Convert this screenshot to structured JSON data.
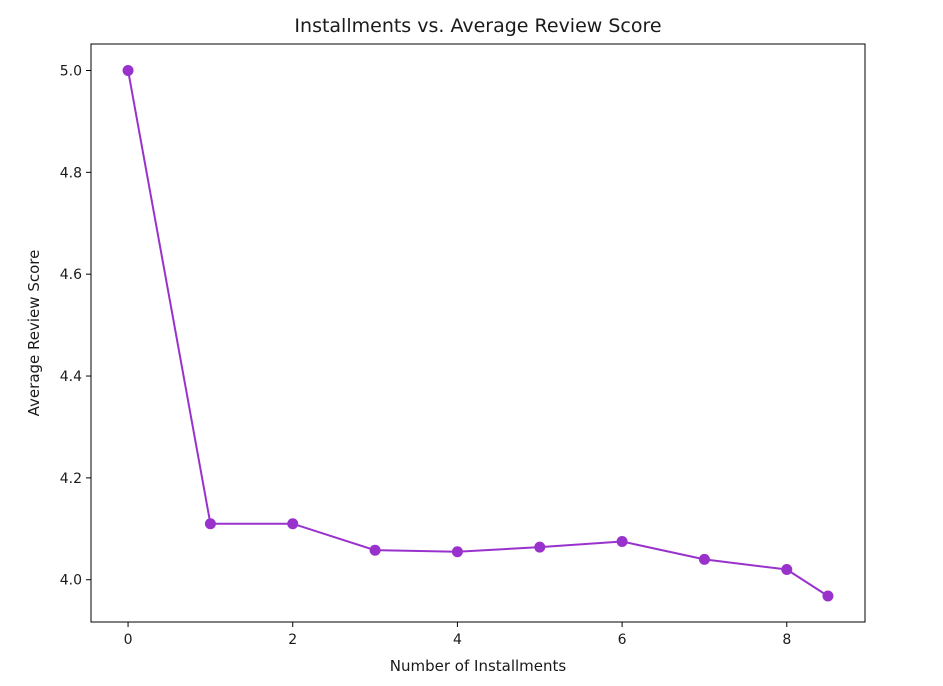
{
  "chart_data": {
    "type": "line",
    "title": "Installments vs. Average Review Score",
    "xlabel": "Number of Installments",
    "ylabel": "Average Review Score",
    "x": [
      0,
      1,
      2,
      3,
      4,
      5,
      6,
      7,
      8,
      8.5
    ],
    "series": [
      {
        "values": [
          5.0,
          4.11,
          4.11,
          4.058,
          4.055,
          4.064,
          4.075,
          4.04,
          4.02,
          3.968
        ],
        "color": "#9932cc",
        "marker": "circle"
      }
    ],
    "xlim": [
      -0.45,
      8.95
    ],
    "ylim": [
      3.917,
      5.052
    ],
    "xticks": [
      0,
      2,
      4,
      6,
      8
    ],
    "xtick_labels": [
      "0",
      "2",
      "4",
      "6",
      "8"
    ],
    "yticks": [
      4.0,
      4.2,
      4.4,
      4.6,
      4.8,
      5.0
    ],
    "ytick_labels": [
      "4.0",
      "4.2",
      "4.4",
      "4.6",
      "4.8",
      "5.0"
    ],
    "grid": false
  }
}
